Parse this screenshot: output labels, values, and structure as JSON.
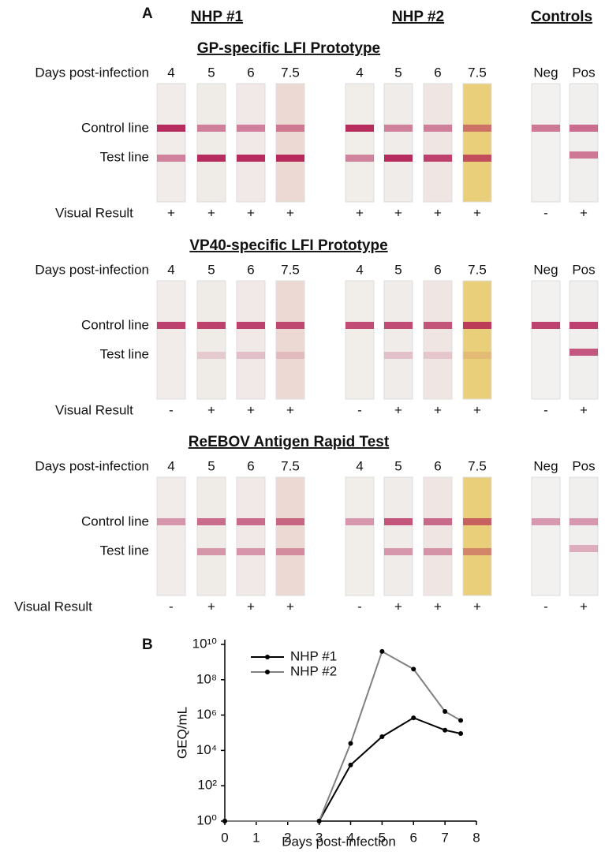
{
  "panel_a": {
    "label": "A",
    "groups": [
      "NHP #1",
      "NHP #2",
      "Controls"
    ],
    "assays": [
      {
        "title": "GP-specific LFI Prototype",
        "row_labels": [
          "Days post-infection",
          "Control line",
          "Test line",
          "Visual Result"
        ],
        "days": [
          "4",
          "5",
          "6",
          "7.5",
          "4",
          "5",
          "6",
          "7.5",
          "Neg",
          "Pos"
        ],
        "results": [
          "+",
          "+",
          "+",
          "+",
          "+",
          "+",
          "+",
          "+",
          "-",
          "+"
        ]
      },
      {
        "title": "VP40-specific LFI Prototype",
        "row_labels": [
          "Days post-infection",
          "Control line",
          "Test line",
          "Visual Result"
        ],
        "days": [
          "4",
          "5",
          "6",
          "7.5",
          "4",
          "5",
          "6",
          "7.5",
          "Neg",
          "Pos"
        ],
        "results": [
          "-",
          "+",
          "+",
          "+",
          "-",
          "+",
          "+",
          "+",
          "-",
          "+"
        ]
      },
      {
        "title": "ReEBOV Antigen Rapid Test",
        "row_labels": [
          "Days post-infection",
          "Control line",
          "Test line",
          "Visual Result"
        ],
        "days": [
          "4",
          "5",
          "6",
          "7.5",
          "4",
          "5",
          "6",
          "7.5",
          "Neg",
          "Pos"
        ],
        "results": [
          "-",
          "+",
          "+",
          "+",
          "-",
          "+",
          "+",
          "+",
          "-",
          "+"
        ]
      }
    ]
  },
  "panel_b": {
    "label": "B"
  },
  "chart_data": {
    "type": "line",
    "x_label": "Days post-infection",
    "y_label": "GEQ/mL",
    "log_y": true,
    "legend": "upper-left",
    "xlim": [
      0,
      8
    ],
    "xticks": [
      0,
      1,
      2,
      3,
      4,
      5,
      6,
      7,
      8
    ],
    "ylim": [
      1,
      10000000000
    ],
    "yticks": [
      {
        "value": 1,
        "label": "10⁰"
      },
      {
        "value": 100,
        "label": "10²"
      },
      {
        "value": 10000,
        "label": "10⁴"
      },
      {
        "value": 1000000,
        "label": "10⁶"
      },
      {
        "value": 100000000,
        "label": "10⁸"
      },
      {
        "value": 10000000000,
        "label": "10¹⁰"
      }
    ],
    "series": [
      {
        "name": "NHP #1",
        "color": "#000000",
        "x": [
          0,
          3,
          4,
          5,
          6,
          7,
          7.5
        ],
        "values": [
          1,
          1,
          1500,
          60000,
          700000,
          140000,
          90000
        ]
      },
      {
        "name": "NHP #2",
        "color": "#808080",
        "x": [
          0,
          3,
          4,
          5,
          6,
          7,
          7.5
        ],
        "values": [
          1,
          1,
          25000,
          4000000000,
          400000000,
          1600000,
          500000
        ]
      }
    ]
  }
}
